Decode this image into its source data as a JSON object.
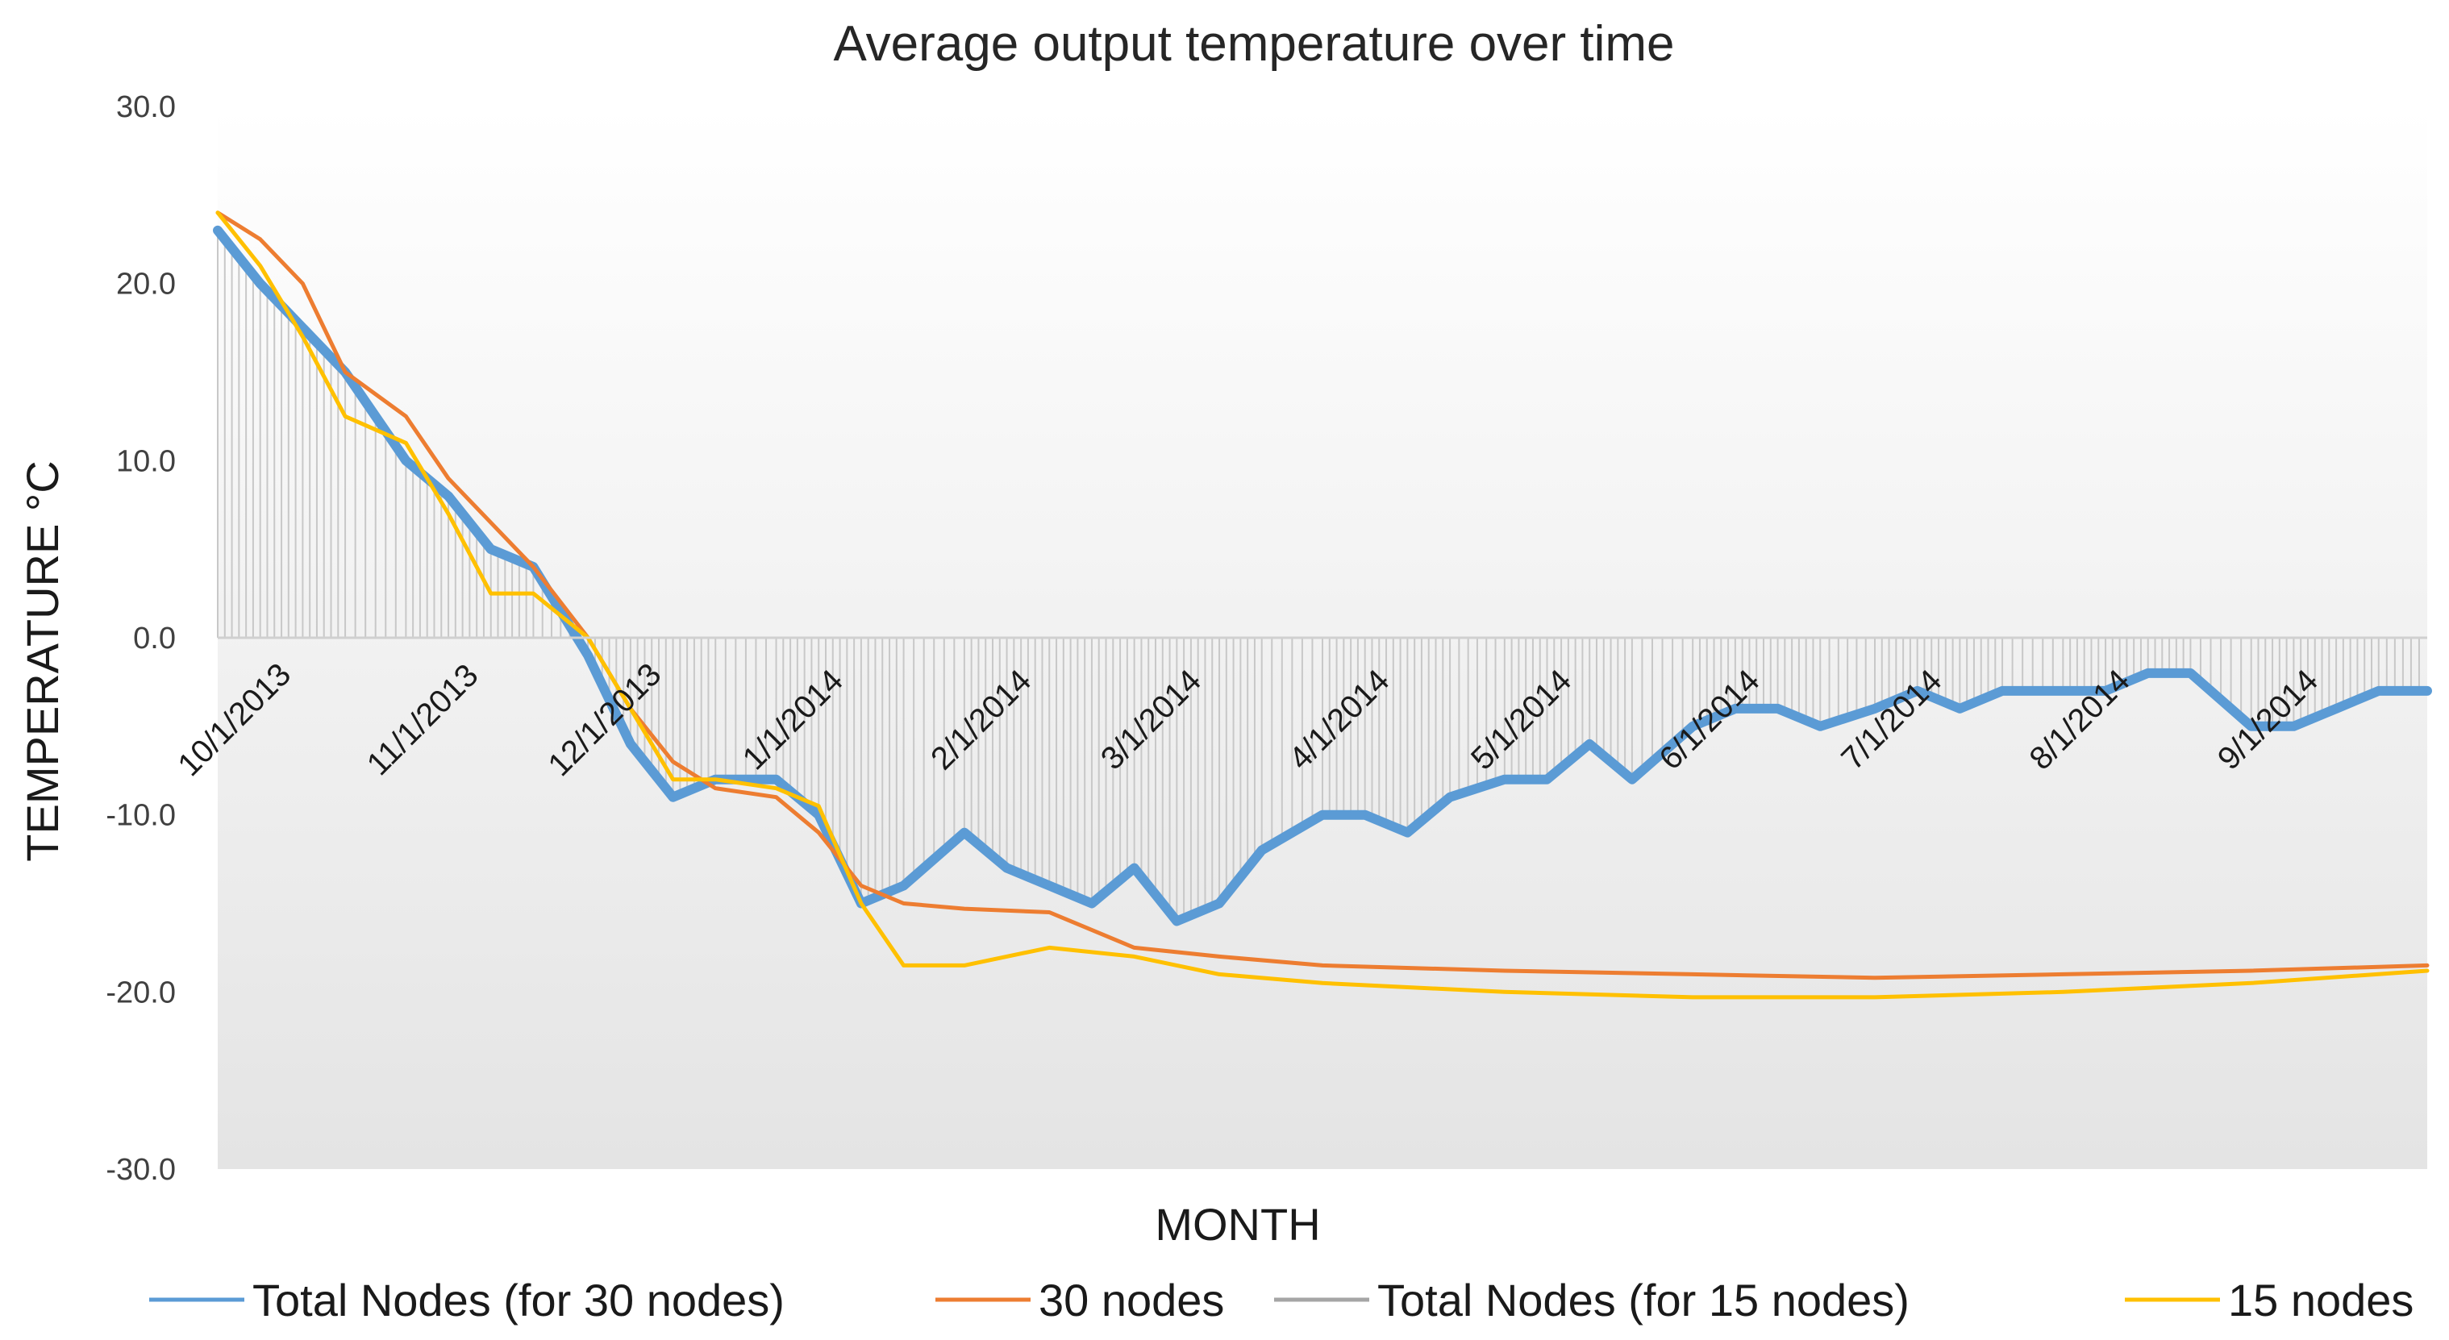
{
  "chart_data": {
    "type": "line",
    "title": "Average output temperature over time",
    "xlabel": "MONTH",
    "ylabel": "TEMPERATURE °C",
    "ylim": [
      -30,
      30
    ],
    "yticks": [
      "30.0",
      "20.0",
      "10.0",
      "0.0",
      "-10.0",
      "-20.0",
      "-30.0"
    ],
    "ytick_values": [
      30,
      20,
      10,
      0,
      -10,
      -20,
      -30
    ],
    "xlim": [
      "10/1/2013",
      "9/30/2014"
    ],
    "categories": [
      "10/1/2013",
      "11/1/2013",
      "12/1/2013",
      "1/1/2014",
      "2/1/2014",
      "3/1/2014",
      "4/1/2014",
      "5/1/2014",
      "6/1/2014",
      "7/1/2014",
      "8/1/2014",
      "9/1/2014"
    ],
    "legend_position": "bottom",
    "grid": false,
    "series": [
      {
        "name": "Total Nodes (for 30 nodes)",
        "color": "#5B9BD5",
        "x": [
          "10/1/2013",
          "10/8/2013",
          "10/15/2013",
          "10/22/2013",
          "11/1/2013",
          "11/8/2013",
          "11/15/2013",
          "11/22/2013",
          "12/1/2013",
          "12/8/2013",
          "12/15/2013",
          "12/22/2013",
          "1/1/2014",
          "1/8/2014",
          "1/15/2014",
          "1/22/2014",
          "2/1/2014",
          "2/8/2014",
          "2/15/2014",
          "2/22/2014",
          "3/1/2014",
          "3/8/2014",
          "3/15/2014",
          "3/22/2014",
          "4/1/2014",
          "4/8/2014",
          "4/15/2014",
          "4/22/2014",
          "5/1/2014",
          "5/8/2014",
          "5/15/2014",
          "5/22/2014",
          "6/1/2014",
          "6/8/2014",
          "6/15/2014",
          "6/22/2014",
          "7/1/2014",
          "7/8/2014",
          "7/15/2014",
          "7/22/2014",
          "8/1/2014",
          "8/8/2014",
          "8/15/2014",
          "8/22/2014",
          "9/1/2014",
          "9/8/2014",
          "9/15/2014",
          "9/22/2014",
          "9/30/2014"
        ],
        "values": [
          23.0,
          20.0,
          17.5,
          15.0,
          10.0,
          8.0,
          5.0,
          4.0,
          -1.0,
          -6.0,
          -9.0,
          -8.0,
          -8.0,
          -10.0,
          -15.0,
          -14.0,
          -11.0,
          -13.0,
          -14.0,
          -15.0,
          -13.0,
          -16.0,
          -15.0,
          -12.0,
          -10.0,
          -10.0,
          -11.0,
          -9.0,
          -8.0,
          -8.0,
          -6.0,
          -8.0,
          -5.0,
          -4.0,
          -4.0,
          -5.0,
          -4.0,
          -3.0,
          -4.0,
          -3.0,
          -3.0,
          -3.0,
          -2.0,
          -2.0,
          -5.0,
          -5.0,
          -4.0,
          -3.0,
          -3.0
        ]
      },
      {
        "name": "30 nodes",
        "color": "#ED7D31",
        "x": [
          "10/1/2013",
          "10/8/2013",
          "10/15/2013",
          "10/22/2013",
          "11/1/2013",
          "11/8/2013",
          "11/15/2013",
          "11/22/2013",
          "12/1/2013",
          "12/8/2013",
          "12/15/2013",
          "12/22/2013",
          "1/1/2014",
          "1/8/2014",
          "1/15/2014",
          "1/22/2014",
          "2/1/2014",
          "2/15/2014",
          "3/1/2014",
          "3/15/2014",
          "4/1/2014",
          "5/1/2014",
          "6/1/2014",
          "7/1/2014",
          "8/1/2014",
          "9/1/2014",
          "9/30/2014"
        ],
        "values": [
          24.0,
          22.5,
          20.0,
          15.0,
          12.5,
          9.0,
          6.5,
          4.0,
          0.0,
          -4.0,
          -7.0,
          -8.5,
          -9.0,
          -11.0,
          -14.0,
          -15.0,
          -15.3,
          -15.5,
          -17.5,
          -18.0,
          -18.5,
          -18.8,
          -19.0,
          -19.2,
          -19.0,
          -18.8,
          -18.5
        ]
      },
      {
        "name": "Total Nodes (for 15 nodes)",
        "color": "#A5A5A5",
        "x": [
          "10/1/2013",
          "10/8/2013",
          "10/15/2013",
          "10/22/2013",
          "11/1/2013",
          "11/8/2013",
          "11/15/2013",
          "11/22/2013",
          "12/1/2013",
          "12/8/2013",
          "12/15/2013",
          "12/22/2013",
          "1/1/2014",
          "1/8/2014",
          "1/15/2014",
          "1/22/2014",
          "2/1/2014",
          "2/8/2014",
          "2/15/2014",
          "2/22/2014",
          "3/1/2014",
          "3/8/2014",
          "3/15/2014",
          "3/22/2014",
          "4/1/2014",
          "4/8/2014",
          "4/15/2014",
          "4/22/2014",
          "5/1/2014",
          "5/8/2014",
          "5/15/2014",
          "5/22/2014",
          "6/1/2014",
          "6/8/2014",
          "6/15/2014",
          "6/22/2014",
          "7/1/2014",
          "7/8/2014",
          "7/15/2014",
          "7/22/2014",
          "8/1/2014",
          "8/8/2014",
          "8/15/2014",
          "8/22/2014",
          "9/1/2014",
          "9/8/2014",
          "9/15/2014",
          "9/22/2014",
          "9/30/2014"
        ],
        "values": [
          23.0,
          20.0,
          17.5,
          15.0,
          10.0,
          8.0,
          5.0,
          4.0,
          -1.0,
          -6.0,
          -9.0,
          -8.0,
          -8.0,
          -10.0,
          -15.0,
          -14.0,
          -11.0,
          -13.0,
          -14.0,
          -15.0,
          -13.0,
          -16.0,
          -15.0,
          -12.0,
          -10.0,
          -10.0,
          -11.0,
          -9.0,
          -8.0,
          -8.0,
          -6.0,
          -8.0,
          -5.0,
          -4.0,
          -4.0,
          -5.0,
          -4.0,
          -3.0,
          -4.0,
          -3.0,
          -3.0,
          -3.0,
          -2.0,
          -2.0,
          -5.0,
          -5.0,
          -4.0,
          -3.0,
          -3.0
        ]
      },
      {
        "name": "15 nodes",
        "color": "#FFC000",
        "x": [
          "10/1/2013",
          "10/8/2013",
          "10/15/2013",
          "10/22/2013",
          "11/1/2013",
          "11/8/2013",
          "11/15/2013",
          "11/22/2013",
          "12/1/2013",
          "12/8/2013",
          "12/15/2013",
          "12/22/2013",
          "1/1/2014",
          "1/8/2014",
          "1/15/2014",
          "1/22/2014",
          "2/1/2014",
          "2/15/2014",
          "3/1/2014",
          "3/15/2014",
          "4/1/2014",
          "5/1/2014",
          "6/1/2014",
          "7/1/2014",
          "8/1/2014",
          "9/1/2014",
          "9/30/2014"
        ],
        "values": [
          24.0,
          21.0,
          17.0,
          12.5,
          11.0,
          7.0,
          2.5,
          2.5,
          0.0,
          -4.0,
          -8.0,
          -8.0,
          -8.5,
          -9.5,
          -15.0,
          -18.5,
          -18.5,
          -17.5,
          -18.0,
          -19.0,
          -19.5,
          -20.0,
          -20.3,
          -20.3,
          -20.0,
          -19.5,
          -18.8
        ]
      }
    ]
  }
}
